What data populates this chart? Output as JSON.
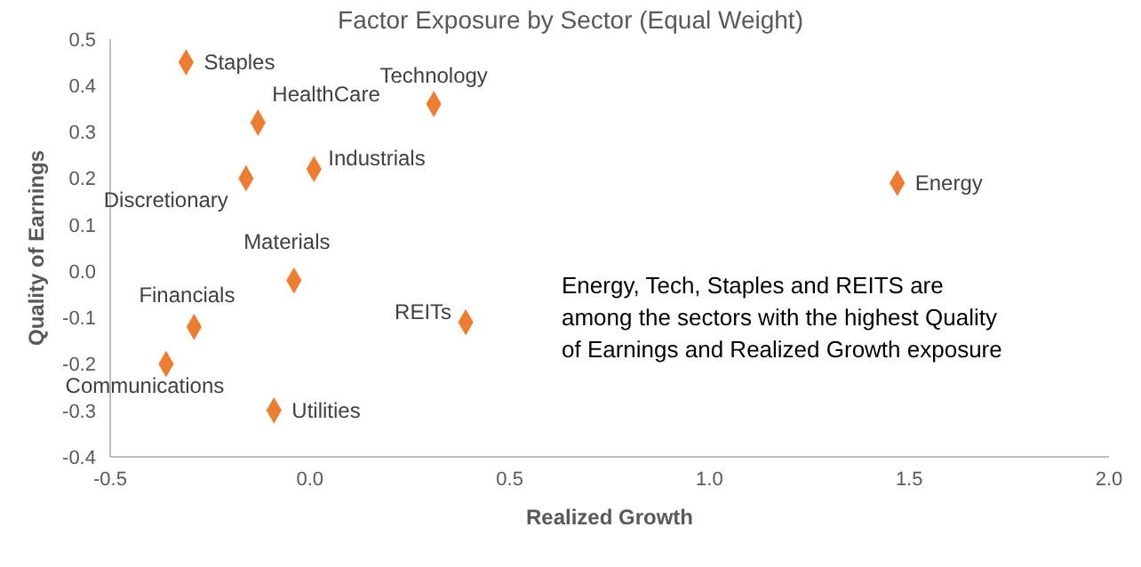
{
  "chart_data": {
    "type": "scatter",
    "title": "Factor Exposure by Sector (Equal Weight)",
    "xlabel": "Realized Growth",
    "ylabel": "Quality of Earnings",
    "annotations": [
      "Energy, Tech, Staples and REITS are among the sectors with the highest Quality of Earnings and Realized Growth exposure"
    ],
    "xlim": [
      -0.5,
      2
    ],
    "xticks": [
      {
        "value": -0.5,
        "label": "-0.5"
      },
      {
        "value": 0,
        "label": "0.0"
      },
      {
        "value": 0.5,
        "label": "0.5"
      },
      {
        "value": 1,
        "label": "1.0"
      },
      {
        "value": 1.5,
        "label": "1.5"
      },
      {
        "value": 2,
        "label": "2.0"
      }
    ],
    "ylim": [
      -0.4,
      0.5
    ],
    "yticks": [
      {
        "value": -0.4,
        "label": "-0.4"
      },
      {
        "value": -0.3,
        "label": "-0.3"
      },
      {
        "value": -0.2,
        "label": "-0.2"
      },
      {
        "value": -0.1,
        "label": "-0.1"
      },
      {
        "value": 0,
        "label": "0.0"
      },
      {
        "value": 0.1,
        "label": "0.1"
      },
      {
        "value": 0.2,
        "label": "0.2"
      },
      {
        "value": 0.3,
        "label": "0.3"
      },
      {
        "value": 0.4,
        "label": "0.4"
      },
      {
        "value": 0.5,
        "label": "0.5"
      }
    ],
    "marker": "diamond",
    "grid": false,
    "legend": false,
    "series": [
      {
        "name": "Staples",
        "color": "#ed7d31",
        "x": [
          -0.31
        ],
        "values": [
          0.45
        ]
      },
      {
        "name": "HealthCare",
        "color": "#ed7d31",
        "x": [
          -0.13
        ],
        "values": [
          0.32
        ]
      },
      {
        "name": "Technology",
        "color": "#ed7d31",
        "x": [
          0.31
        ],
        "values": [
          0.36
        ]
      },
      {
        "name": "Industrials",
        "color": "#ed7d31",
        "x": [
          0.01
        ],
        "values": [
          0.22
        ]
      },
      {
        "name": "Discretionary",
        "color": "#ed7d31",
        "x": [
          -0.16
        ],
        "values": [
          0.2
        ]
      },
      {
        "name": "Materials",
        "color": "#ed7d31",
        "x": [
          -0.04
        ],
        "values": [
          -0.02
        ]
      },
      {
        "name": "Financials",
        "color": "#ed7d31",
        "x": [
          -0.29
        ],
        "values": [
          -0.12
        ]
      },
      {
        "name": "Communications",
        "color": "#ed7d31",
        "x": [
          -0.36
        ],
        "values": [
          -0.2
        ]
      },
      {
        "name": "Utilities",
        "color": "#ed7d31",
        "x": [
          -0.09
        ],
        "values": [
          -0.3
        ]
      },
      {
        "name": "REITs",
        "color": "#ed7d31",
        "x": [
          0.39
        ],
        "values": [
          -0.11
        ]
      },
      {
        "name": "Energy",
        "color": "#ed7d31",
        "x": [
          1.47
        ],
        "values": [
          0.19
        ]
      }
    ]
  }
}
